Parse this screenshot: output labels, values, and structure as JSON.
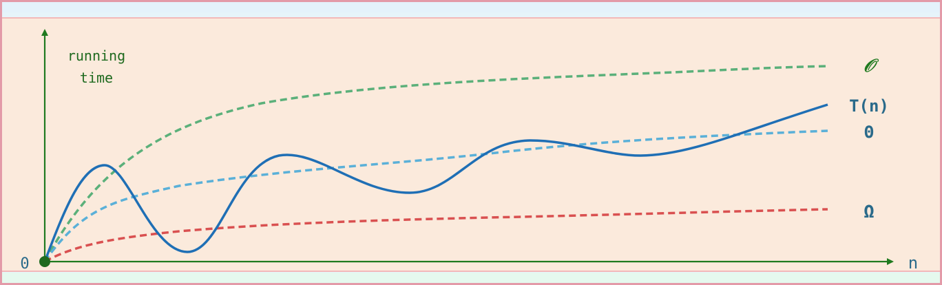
{
  "axes": {
    "y_label_line1": "running",
    "y_label_line2": "time",
    "x_label": "n",
    "origin_label": "0"
  },
  "curves": [
    {
      "id": "O",
      "label": "𝒪",
      "color": "#5bb07a",
      "style": "dashed"
    },
    {
      "id": "T",
      "label": "T(n)",
      "color": "#1f6fb5",
      "style": "solid"
    },
    {
      "id": "Theta",
      "label": "Θ",
      "color": "#5ab0d8",
      "style": "dashed"
    },
    {
      "id": "Omega",
      "label": "Ω",
      "color": "#d95050",
      "style": "dashed"
    }
  ],
  "colors": {
    "axis": "#1f7a1f",
    "label_text": "#2a6a8a",
    "axis_text": "#1f6a1f",
    "frame": "#e39aa8",
    "plot_background": "#fbeadc"
  }
}
